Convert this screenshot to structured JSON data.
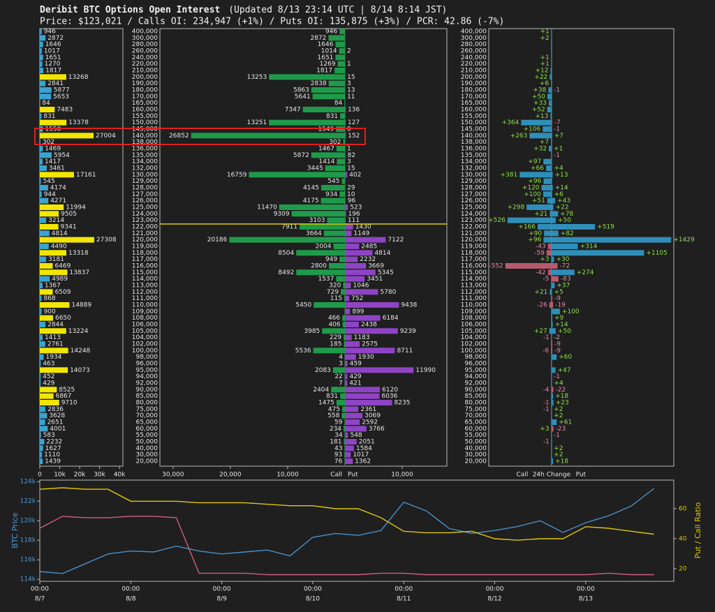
{
  "header": {
    "title": "Deribit BTC Options Open Interest",
    "updated": "(Updated 8/13 23:14 UTC | 8/14 8:14 JST)",
    "stats": "Price: $123,021 / Calls OI: 234,947 (+1%) / Puts OI: 135,875 (+3%) / PCR: 42.86 (-7%)"
  },
  "chart_data": [
    {
      "type": "hbar",
      "values": [
        946,
        2872,
        1646,
        1017,
        1651,
        1270,
        1817,
        13268,
        2841,
        5877,
        5653,
        84,
        7483,
        831,
        13378,
        1550,
        27004,
        302,
        1469,
        5954,
        1417,
        3461,
        17161,
        545,
        4174,
        944,
        4271,
        11994,
        9505,
        3214,
        9341,
        4814,
        27308,
        4490,
        13318,
        3181,
        6469,
        13837,
        4989,
        1367,
        6509,
        868,
        14889,
        900,
        6650,
        2844,
        13224,
        1413,
        2761,
        14248,
        1934,
        463,
        14073,
        452,
        429,
        8525,
        6867,
        9710,
        2836,
        3628,
        2651,
        4001,
        583,
        2232,
        1627,
        1110,
        1439
      ],
      "colors": [
        "#3ba3d0",
        "#3ba3d0",
        "#3ba3d0",
        "#3ba3d0",
        "#3ba3d0",
        "#3ba3d0",
        "#3ba3d0",
        "#f2e600",
        "#3ba3d0",
        "#3ba3d0",
        "#3ba3d0",
        "#3ba3d0",
        "#f2e600",
        "#3ba3d0",
        "#f2e600",
        "#3ba3d0",
        "#f2e600",
        "#3ba3d0",
        "#3ba3d0",
        "#3ba3d0",
        "#3ba3d0",
        "#3ba3d0",
        "#f2e600",
        "#3ba3d0",
        "#3ba3d0",
        "#3ba3d0",
        "#3ba3d0",
        "#f2e600",
        "#f2e600",
        "#3ba3d0",
        "#f2e600",
        "#3ba3d0",
        "#f2e600",
        "#3ba3d0",
        "#f2e600",
        "#3ba3d0",
        "#f2e600",
        "#f2e600",
        "#3ba3d0",
        "#3ba3d0",
        "#f2e600",
        "#3ba3d0",
        "#f2e600",
        "#3ba3d0",
        "#f2e600",
        "#3ba3d0",
        "#f2e600",
        "#3ba3d0",
        "#3ba3d0",
        "#f2e600",
        "#3ba3d0",
        "#3ba3d0",
        "#f2e600",
        "#3ba3d0",
        "#3ba3d0",
        "#f2e600",
        "#f2e600",
        "#f2e600",
        "#3ba3d0",
        "#3ba3d0",
        "#3ba3d0",
        "#3ba3d0",
        "#3ba3d0",
        "#3ba3d0",
        "#3ba3d0",
        "#3ba3d0",
        "#3ba3d0"
      ],
      "xlim": [
        0,
        41700
      ],
      "xticks": [
        0,
        {
          "value": 10000,
          "label": "10k"
        },
        {
          "value": 20000,
          "label": "20k"
        },
        {
          "value": 30000,
          "label": "30k"
        },
        {
          "value": 40000,
          "label": "40k"
        }
      ]
    },
    {
      "type": "butterfly",
      "categories": [
        "400,000",
        "300,000",
        "280,000",
        "260,000",
        "240,000",
        "220,000",
        "210,000",
        "200,000",
        "190,000",
        "180,000",
        "170,000",
        "165,000",
        "160,000",
        "155,000",
        "150,000",
        "145,000",
        "140,000",
        "138,000",
        "136,000",
        "135,000",
        "134,000",
        "132,000",
        "130,000",
        "129,000",
        "128,000",
        "127,000",
        "126,000",
        "125,000",
        "124,000",
        "123,000",
        "122,000",
        "121,000",
        "120,000",
        "119,000",
        "118,000",
        "117,000",
        "116,000",
        "115,000",
        "114,000",
        "113,000",
        "112,000",
        "111,000",
        "110,000",
        "109,000",
        "108,000",
        "106,000",
        "105,000",
        "104,000",
        "102,000",
        "100,000",
        "98,000",
        "96,000",
        "95,000",
        "94,000",
        "92,000",
        "90,000",
        "85,000",
        "80,000",
        "75,000",
        "70,000",
        "65,000",
        "60,000",
        "55,000",
        "50,000",
        "40,000",
        "30,000",
        "20,000"
      ],
      "call_label": "Call",
      "put_label": "Put",
      "call_color": "#1f9a4a",
      "put_color": "#8e44c4",
      "call_values": [
        946,
        2872,
        1646,
        1014,
        1651,
        1269,
        1817,
        13253,
        2838,
        5863,
        5641,
        84,
        7347,
        831,
        13251,
        1549,
        26852,
        302,
        1467,
        5872,
        1414,
        3445,
        16759,
        545,
        4145,
        934,
        4175,
        11470,
        9309,
        3103,
        7911,
        3664,
        20186,
        2004,
        8504,
        949,
        2800,
        8492,
        1537,
        320,
        729,
        115,
        5450,
        null,
        466,
        406,
        3985,
        229,
        185,
        5536,
        4,
        3,
        2083,
        22,
        7,
        2404,
        831,
        1475,
        475,
        558,
        59,
        234,
        34,
        181,
        43,
        93,
        76
      ],
      "put_values": [
        null,
        null,
        null,
        2,
        null,
        1,
        null,
        15,
        3,
        13,
        11,
        null,
        136,
        null,
        127,
        0,
        152,
        null,
        1,
        82,
        3,
        15,
        402,
        null,
        29,
        10,
        96,
        523,
        196,
        111,
        1430,
        1149,
        7122,
        2485,
        4814,
        2232,
        3669,
        5345,
        3451,
        1046,
        5780,
        752,
        9438,
        899,
        6184,
        2438,
        9239,
        1183,
        2575,
        8711,
        1930,
        459,
        11990,
        429,
        421,
        6120,
        6036,
        8235,
        2361,
        3069,
        2592,
        3766,
        548,
        2051,
        1584,
        1017,
        1362
      ],
      "call_xlim": [
        0,
        32300
      ],
      "put_xlim": [
        0,
        17800
      ],
      "call_xticks": [
        {
          "value": 30000,
          "label": "30,000"
        },
        {
          "value": 20000,
          "label": "20,000"
        },
        {
          "value": 10000,
          "label": "10,000"
        }
      ],
      "put_xticks": [
        {
          "value": 10000,
          "label": "10,000"
        }
      ]
    },
    {
      "type": "change",
      "categories": [
        "400,000",
        "300,000",
        "280,000",
        "260,000",
        "240,000",
        "220,000",
        "210,000",
        "200,000",
        "190,000",
        "180,000",
        "170,000",
        "165,000",
        "160,000",
        "155,000",
        "150,000",
        "145,000",
        "140,000",
        "138,000",
        "136,000",
        "135,000",
        "134,000",
        "132,000",
        "130,000",
        "129,000",
        "128,000",
        "127,000",
        "126,000",
        "125,000",
        "124,000",
        "123,000",
        "122,000",
        "121,000",
        "120,000",
        "119,000",
        "118,000",
        "117,000",
        "116,000",
        "115,000",
        "114,000",
        "113,000",
        "112,000",
        "111,000",
        "110,000",
        "109,000",
        "108,000",
        "106,000",
        "105,000",
        "104,000",
        "102,000",
        "100,000",
        "98,000",
        "96,000",
        "95,000",
        "94,000",
        "92,000",
        "90,000",
        "85,000",
        "80,000",
        "75,000",
        "70,000",
        "65,000",
        "60,000",
        "55,000",
        "50,000",
        "40,000",
        "30,000",
        "20,000"
      ],
      "call_label": "Call",
      "xlabel": "24h Change",
      "put_label": "Put",
      "pos_color": "#2f8fb8",
      "neg_color": "#b85a6e",
      "pos_label_color": "#8fe04a",
      "neg_label_color": "#e08aa8",
      "call_values": [
        1,
        2,
        null,
        null,
        1,
        1,
        12,
        22,
        6,
        38,
        50,
        33,
        52,
        13,
        364,
        106,
        263,
        7,
        32,
        null,
        97,
        66,
        381,
        96,
        120,
        100,
        51,
        298,
        21,
        526,
        166,
        90,
        96,
        -43,
        -59,
        3,
        -552,
        -42,
        -5,
        null,
        21,
        null,
        -26,
        null,
        null,
        null,
        27,
        -1,
        null,
        -6,
        null,
        null,
        null,
        null,
        null,
        -4,
        null,
        -1,
        -1,
        null,
        null,
        3,
        null,
        -1,
        null,
        null,
        null
      ],
      "call_value_labels": [
        "+1",
        "+2",
        null,
        null,
        "+1",
        "+1",
        "+12",
        "+22",
        "+6",
        "+38",
        "+50",
        "+33",
        "+52",
        "+13",
        "+364",
        "+106",
        "+263",
        "+7",
        "+32",
        null,
        "+97",
        "+66",
        "+381",
        "+96",
        "+120",
        "+100",
        "+51",
        "+298",
        "+21",
        "+526",
        "+166",
        "+90",
        "+96",
        "-43",
        "-59",
        "+3",
        "-552",
        "-42",
        "-5",
        null,
        "+21",
        null,
        "-26",
        null,
        null,
        null,
        "+27",
        "-1",
        null,
        "-6",
        null,
        null,
        null,
        null,
        null,
        "-4",
        null,
        "-1",
        "-1",
        null,
        null,
        "+3",
        null,
        "-1",
        null,
        null,
        null
      ],
      "put_values": [
        null,
        null,
        null,
        null,
        null,
        null,
        null,
        null,
        null,
        -1,
        null,
        null,
        null,
        null,
        -7,
        -1,
        7,
        null,
        1,
        -1,
        null,
        4,
        13,
        null,
        14,
        6,
        43,
        22,
        78,
        50,
        519,
        82,
        1429,
        314,
        1105,
        30,
        -72,
        274,
        -83,
        37,
        5,
        -9,
        -19,
        100,
        9,
        14,
        50,
        -2,
        -9,
        -9,
        60,
        null,
        47,
        -1,
        4,
        -22,
        18,
        23,
        2,
        2,
        61,
        -23,
        -1,
        null,
        2,
        2,
        18
      ],
      "put_value_labels": [
        null,
        null,
        null,
        null,
        null,
        null,
        null,
        null,
        null,
        "-1",
        null,
        null,
        null,
        null,
        "-7",
        "-1",
        "+7",
        null,
        "+1",
        "-1",
        null,
        "+4",
        "+13",
        null,
        "+14",
        "+6",
        "+43",
        "+22",
        "+78",
        "+50",
        "+519",
        "+82",
        "+1429",
        "+314",
        "+1105",
        "+30",
        "-72",
        "+274",
        "-83",
        "+37",
        "+5",
        "-9",
        "-19",
        "+100",
        "+9",
        "+14",
        "+50",
        "-2",
        "-9",
        "-9",
        "+60",
        null,
        "+47",
        "-1",
        "+4",
        "-22",
        "+18",
        "+23",
        "+2",
        "+2",
        "+61",
        "-23",
        "-1",
        null,
        "+2",
        "+2",
        "+18"
      ],
      "call_xlim": [
        0,
        750
      ],
      "put_xlim": [
        0,
        1460
      ]
    },
    {
      "type": "line",
      "ylabel": "BTC Price",
      "y2label": "Put / Call Ratio",
      "ylabel_color": "#4a9ad8",
      "y2label_color": "#e0c800",
      "x": [
        "8/7 00:00",
        "8/7 06:00",
        "8/7 12:00",
        "8/7 18:00",
        "8/8 00:00",
        "8/8 06:00",
        "8/8 12:00",
        "8/8 18:00",
        "8/9 00:00",
        "8/9 06:00",
        "8/9 12:00",
        "8/9 18:00",
        "8/10 00:00",
        "8/10 06:00",
        "8/10 12:00",
        "8/10 18:00",
        "8/11 00:00",
        "8/11 06:00",
        "8/11 12:00",
        "8/11 18:00",
        "8/12 00:00",
        "8/12 06:00",
        "8/12 12:00",
        "8/12 18:00",
        "8/13 00:00",
        "8/13 06:00",
        "8/13 12:00",
        "8/13 18:00"
      ],
      "series": [
        {
          "color": "#4a90c8",
          "values": [
            114800,
            114600,
            115600,
            116600,
            116900,
            116800,
            117400,
            116900,
            116600,
            116800,
            117000,
            116400,
            118300,
            118700,
            118500,
            119000,
            121900,
            121000,
            119200,
            118700,
            119000,
            119400,
            120000,
            118800,
            119800,
            120500,
            121500,
            123300
          ]
        },
        {
          "color": "#d06080",
          "axis": "y2",
          "values": [
            47,
            55,
            54,
            54,
            55,
            55,
            54,
            17,
            17,
            17,
            16,
            16,
            16,
            16,
            16,
            17,
            17,
            16,
            16,
            16,
            16,
            16,
            16,
            16,
            16,
            17,
            16,
            16
          ]
        },
        {
          "color": "#e0c800",
          "axis": "y2",
          "values": [
            73,
            74,
            73,
            73,
            65,
            65,
            65,
            64,
            64,
            64,
            63,
            62,
            62,
            60,
            60,
            54,
            45,
            44,
            44,
            45,
            40,
            39,
            40,
            40,
            48,
            47,
            45,
            43
          ]
        }
      ],
      "xlim": [
        "8/7 00:00",
        "8/13 23:14"
      ],
      "xticks": [
        {
          "value": "8/7 00:00",
          "label": [
            "00:00",
            "8/7"
          ]
        },
        {
          "value": "8/8 00:00",
          "label": [
            "00:00",
            "8/8"
          ]
        },
        {
          "value": "8/9 00:00",
          "label": [
            "00:00",
            "8/9"
          ]
        },
        {
          "value": "8/10 00:00",
          "label": [
            "00:00",
            "8/10"
          ]
        },
        {
          "value": "8/11 00:00",
          "label": [
            "00:00",
            "8/11"
          ]
        },
        {
          "value": "8/12 00:00",
          "label": [
            "00:00",
            "8/12"
          ]
        },
        {
          "value": "8/13 00:00",
          "label": [
            "00:00",
            "8/13"
          ]
        }
      ],
      "ylim": [
        113800,
        124160
      ],
      "yticks": [
        {
          "value": 114000,
          "label": "114k"
        },
        {
          "value": 116000,
          "label": "116k"
        },
        {
          "value": 118000,
          "label": "118k"
        },
        {
          "value": 120000,
          "label": "120k"
        },
        {
          "value": 122000,
          "label": "122k"
        },
        {
          "value": 124000,
          "label": "124k"
        }
      ],
      "y2lim": [
        11.6,
        79.1
      ],
      "y2ticks": [
        20,
        40,
        60
      ]
    }
  ]
}
